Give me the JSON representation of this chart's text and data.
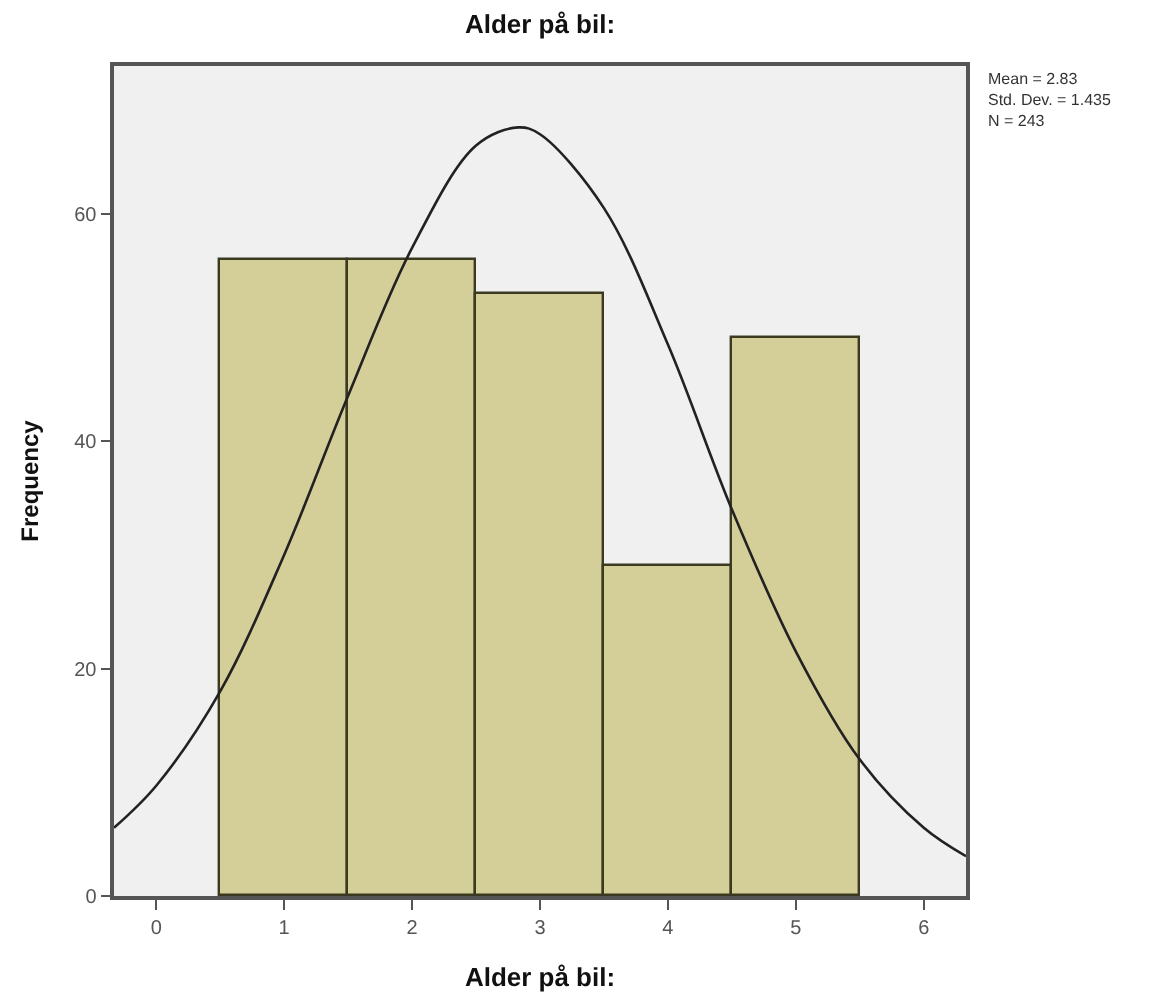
{
  "chart_data": {
    "type": "histogram",
    "title": "Alder på bil:",
    "xlabel": "Alder på bil:",
    "ylabel": "Frequency",
    "bins": [
      0.5,
      1.5,
      2.5,
      3.5,
      4.5,
      5.5
    ],
    "values": [
      56,
      56,
      53,
      29,
      49
    ],
    "color": "#d4cf98",
    "series": [
      {
        "type": "line",
        "color": "#222222",
        "x": [
          -0.33,
          0,
          0.5,
          1,
          1.5,
          2,
          2.5,
          2.83,
          3,
          3.5,
          4,
          4.5,
          5,
          5.5,
          6,
          6.33
        ],
        "values": [
          6,
          9.7,
          18,
          30,
          44,
          57,
          66,
          67.6,
          67,
          60.5,
          48.5,
          34,
          21.5,
          12,
          6,
          3.5
        ]
      }
    ],
    "xlim": [
      -0.33,
      6.33
    ],
    "ylim": [
      0,
      73
    ],
    "xticks": [
      0,
      1,
      2,
      3,
      4,
      5,
      6
    ],
    "yticks": [
      0,
      20,
      40,
      60
    ],
    "grid": false,
    "annotations": [
      "Mean = 2.83\nStd. Dev. = 1.435\nN = 243"
    ]
  }
}
